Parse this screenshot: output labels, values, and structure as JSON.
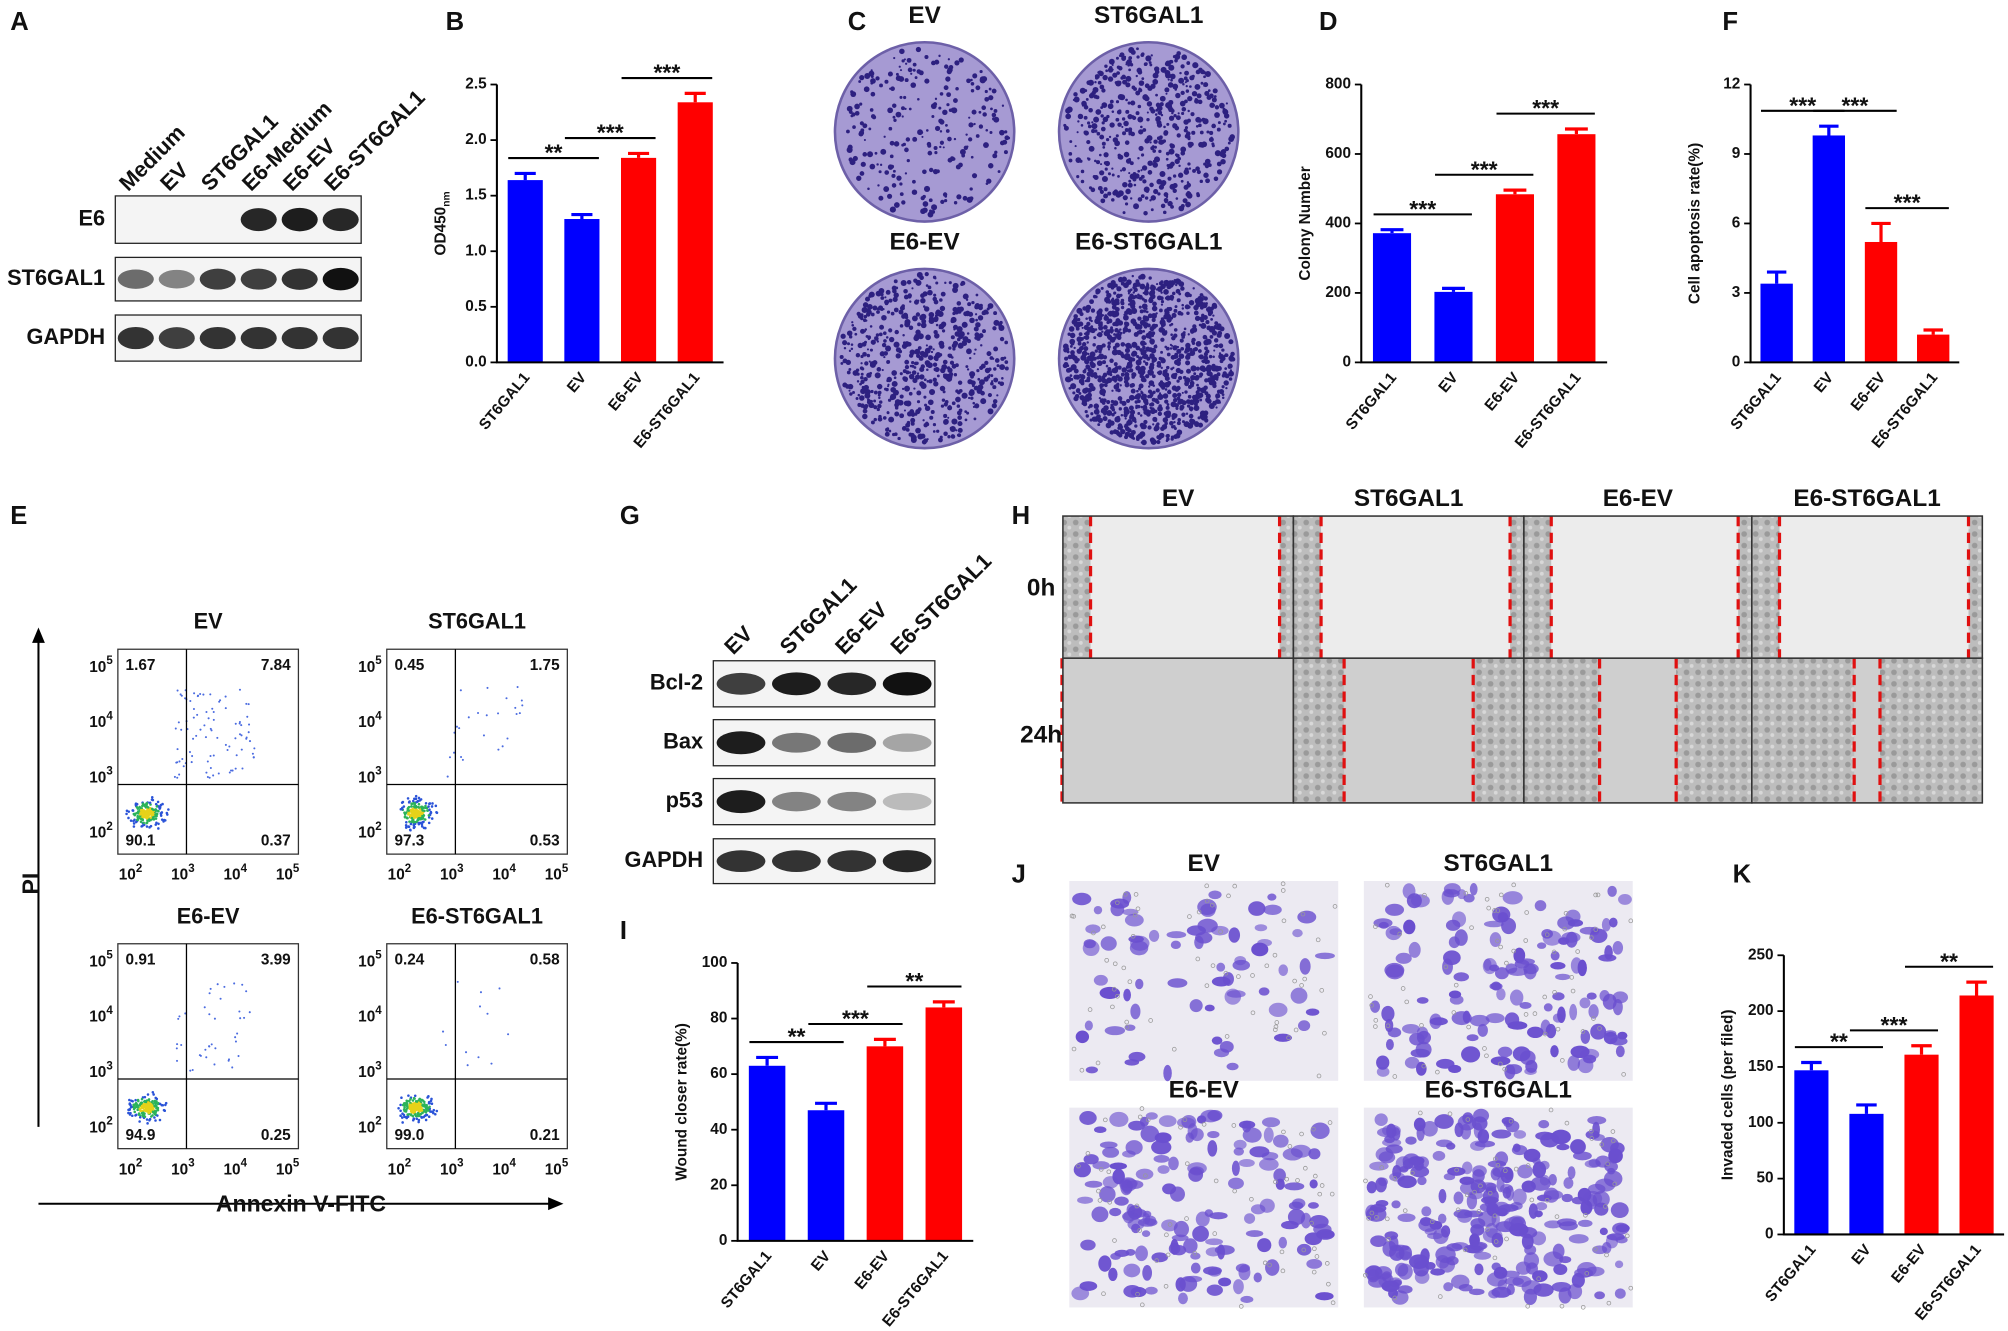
{
  "panel_letters": [
    "A",
    "B",
    "C",
    "D",
    "F",
    "E",
    "G",
    "H",
    "J",
    "I",
    "K"
  ],
  "blot_a": {
    "lanes": [
      "Medium",
      "EV",
      "ST6GAL1",
      "E6-Medium",
      "E6-EV",
      "E6-ST6GAL1"
    ],
    "rows": [
      "E6",
      "ST6GAL1",
      "GAPDH"
    ]
  },
  "blot_g": {
    "lanes": [
      "EV",
      "ST6GAL1",
      "E6-EV",
      "E6-ST6GAL1"
    ],
    "rows": [
      "Bcl-2",
      "Bax",
      "p53",
      "GAPDH"
    ]
  },
  "plates": [
    "EV",
    "ST6GAL1",
    "E6-EV",
    "E6-ST6GAL1"
  ],
  "flow": {
    "y_label": "PI",
    "x_label": "Annexin V-FITC",
    "tick_base": "10",
    "tick_exps": [
      "2",
      "3",
      "4",
      "5"
    ],
    "plots": [
      {
        "title": "EV",
        "quadrants": [
          "1.67",
          "7.84",
          "90.1",
          "0.37"
        ]
      },
      {
        "title": "ST6GAL1",
        "quadrants": [
          "0.45",
          "1.75",
          "97.3",
          "0.53"
        ]
      },
      {
        "title": "E6-EV",
        "quadrants": [
          "0.91",
          "3.99",
          "94.9",
          "0.25"
        ]
      },
      {
        "title": "E6-ST6GAL1",
        "quadrants": [
          "0.24",
          "0.58",
          "99.0",
          "0.21"
        ]
      }
    ]
  },
  "wound": {
    "columns": [
      "EV",
      "ST6GAL1",
      "E6-EV",
      "E6-ST6GAL1"
    ],
    "rows": [
      "0h",
      "24h"
    ]
  },
  "transwell": [
    "EV",
    "ST6GAL1",
    "E6-EV",
    "E6-ST6GAL1"
  ],
  "chart_data": [
    {
      "type": "bar",
      "ylabel": "OD450",
      "ylabel_sub": "nm",
      "categories": [
        "ST6GAL1",
        "EV",
        "E6-EV",
        "E6-ST6GAL1"
      ],
      "values": [
        1.64,
        1.29,
        1.84,
        2.34
      ],
      "errors": [
        0.06,
        0.04,
        0.04,
        0.08
      ],
      "colors": [
        "#0000ff",
        "#0000ff",
        "#ff0000",
        "#ff0000"
      ],
      "ylim": [
        0,
        2.5
      ],
      "yticks": [
        {
          "value": 0,
          "label": "0.0"
        },
        0.5,
        {
          "value": 1,
          "label": "1.0"
        },
        1.5,
        {
          "value": 2,
          "label": "2.0"
        },
        2.5
      ],
      "annotations": [
        {
          "text": "**",
          "from": 0,
          "to": 1
        },
        {
          "text": "***",
          "from": 1,
          "to": 2
        },
        {
          "text": "***",
          "from": 2,
          "to": 3
        }
      ]
    },
    {
      "type": "bar",
      "ylabel": "Colony Number",
      "categories": [
        "ST6GAL1",
        "EV",
        "E6-EV",
        "E6-ST6GAL1"
      ],
      "values": [
        372,
        203,
        484,
        657
      ],
      "errors": [
        10,
        10,
        12,
        15
      ],
      "colors": [
        "#0000ff",
        "#0000ff",
        "#ff0000",
        "#ff0000"
      ],
      "ylim": [
        0,
        800
      ],
      "yticks": [
        0,
        200,
        400,
        600,
        800
      ],
      "annotations": [
        {
          "text": "***",
          "from": 0,
          "to": 1
        },
        {
          "text": "***",
          "from": 1,
          "to": 2
        },
        {
          "text": "***",
          "from": 2,
          "to": 3
        }
      ]
    },
    {
      "type": "bar",
      "ylabel": "Cell apoptosis rate(%)",
      "categories": [
        "ST6GAL1",
        "EV",
        "E6-EV",
        "E6-ST6GAL1"
      ],
      "values": [
        3.4,
        9.8,
        5.2,
        1.2
      ],
      "errors": [
        0.5,
        0.4,
        0.8,
        0.2
      ],
      "colors": [
        "#0000ff",
        "#0000ff",
        "#ff0000",
        "#ff0000"
      ],
      "ylim": [
        0,
        12
      ],
      "yticks": [
        0,
        3,
        6,
        9,
        12
      ],
      "annotations": [
        {
          "text": "***",
          "from": 0,
          "to": 1
        },
        {
          "text": "***",
          "from": 1,
          "to": 2
        },
        {
          "text": "***",
          "from": 2,
          "to": 3
        }
      ]
    },
    {
      "type": "bar",
      "ylabel": "Wound closer rate(%)",
      "categories": [
        "ST6GAL1",
        "EV",
        "E6-EV",
        "E6-ST6GAL1"
      ],
      "values": [
        63,
        47,
        70,
        84
      ],
      "errors": [
        3,
        2.5,
        2.5,
        2
      ],
      "colors": [
        "#0000ff",
        "#0000ff",
        "#ff0000",
        "#ff0000"
      ],
      "ylim": [
        0,
        100
      ],
      "yticks": [
        0,
        20,
        40,
        60,
        80,
        100
      ],
      "annotations": [
        {
          "text": "**",
          "from": 0,
          "to": 1
        },
        {
          "text": "***",
          "from": 1,
          "to": 2
        },
        {
          "text": "**",
          "from": 2,
          "to": 3
        }
      ]
    },
    {
      "type": "bar",
      "ylabel": "Invaded cells (per filed)",
      "categories": [
        "ST6GAL1",
        "EV",
        "E6-EV",
        "E6-ST6GAL1"
      ],
      "values": [
        147,
        108,
        161,
        214
      ],
      "errors": [
        7,
        8,
        8,
        12
      ],
      "colors": [
        "#0000ff",
        "#0000ff",
        "#ff0000",
        "#ff0000"
      ],
      "ylim": [
        0,
        250
      ],
      "yticks": [
        0,
        50,
        100,
        150,
        200,
        250
      ],
      "annotations": [
        {
          "text": "**",
          "from": 0,
          "to": 1
        },
        {
          "text": "***",
          "from": 1,
          "to": 2
        },
        {
          "text": "**",
          "from": 2,
          "to": 3
        }
      ]
    }
  ]
}
